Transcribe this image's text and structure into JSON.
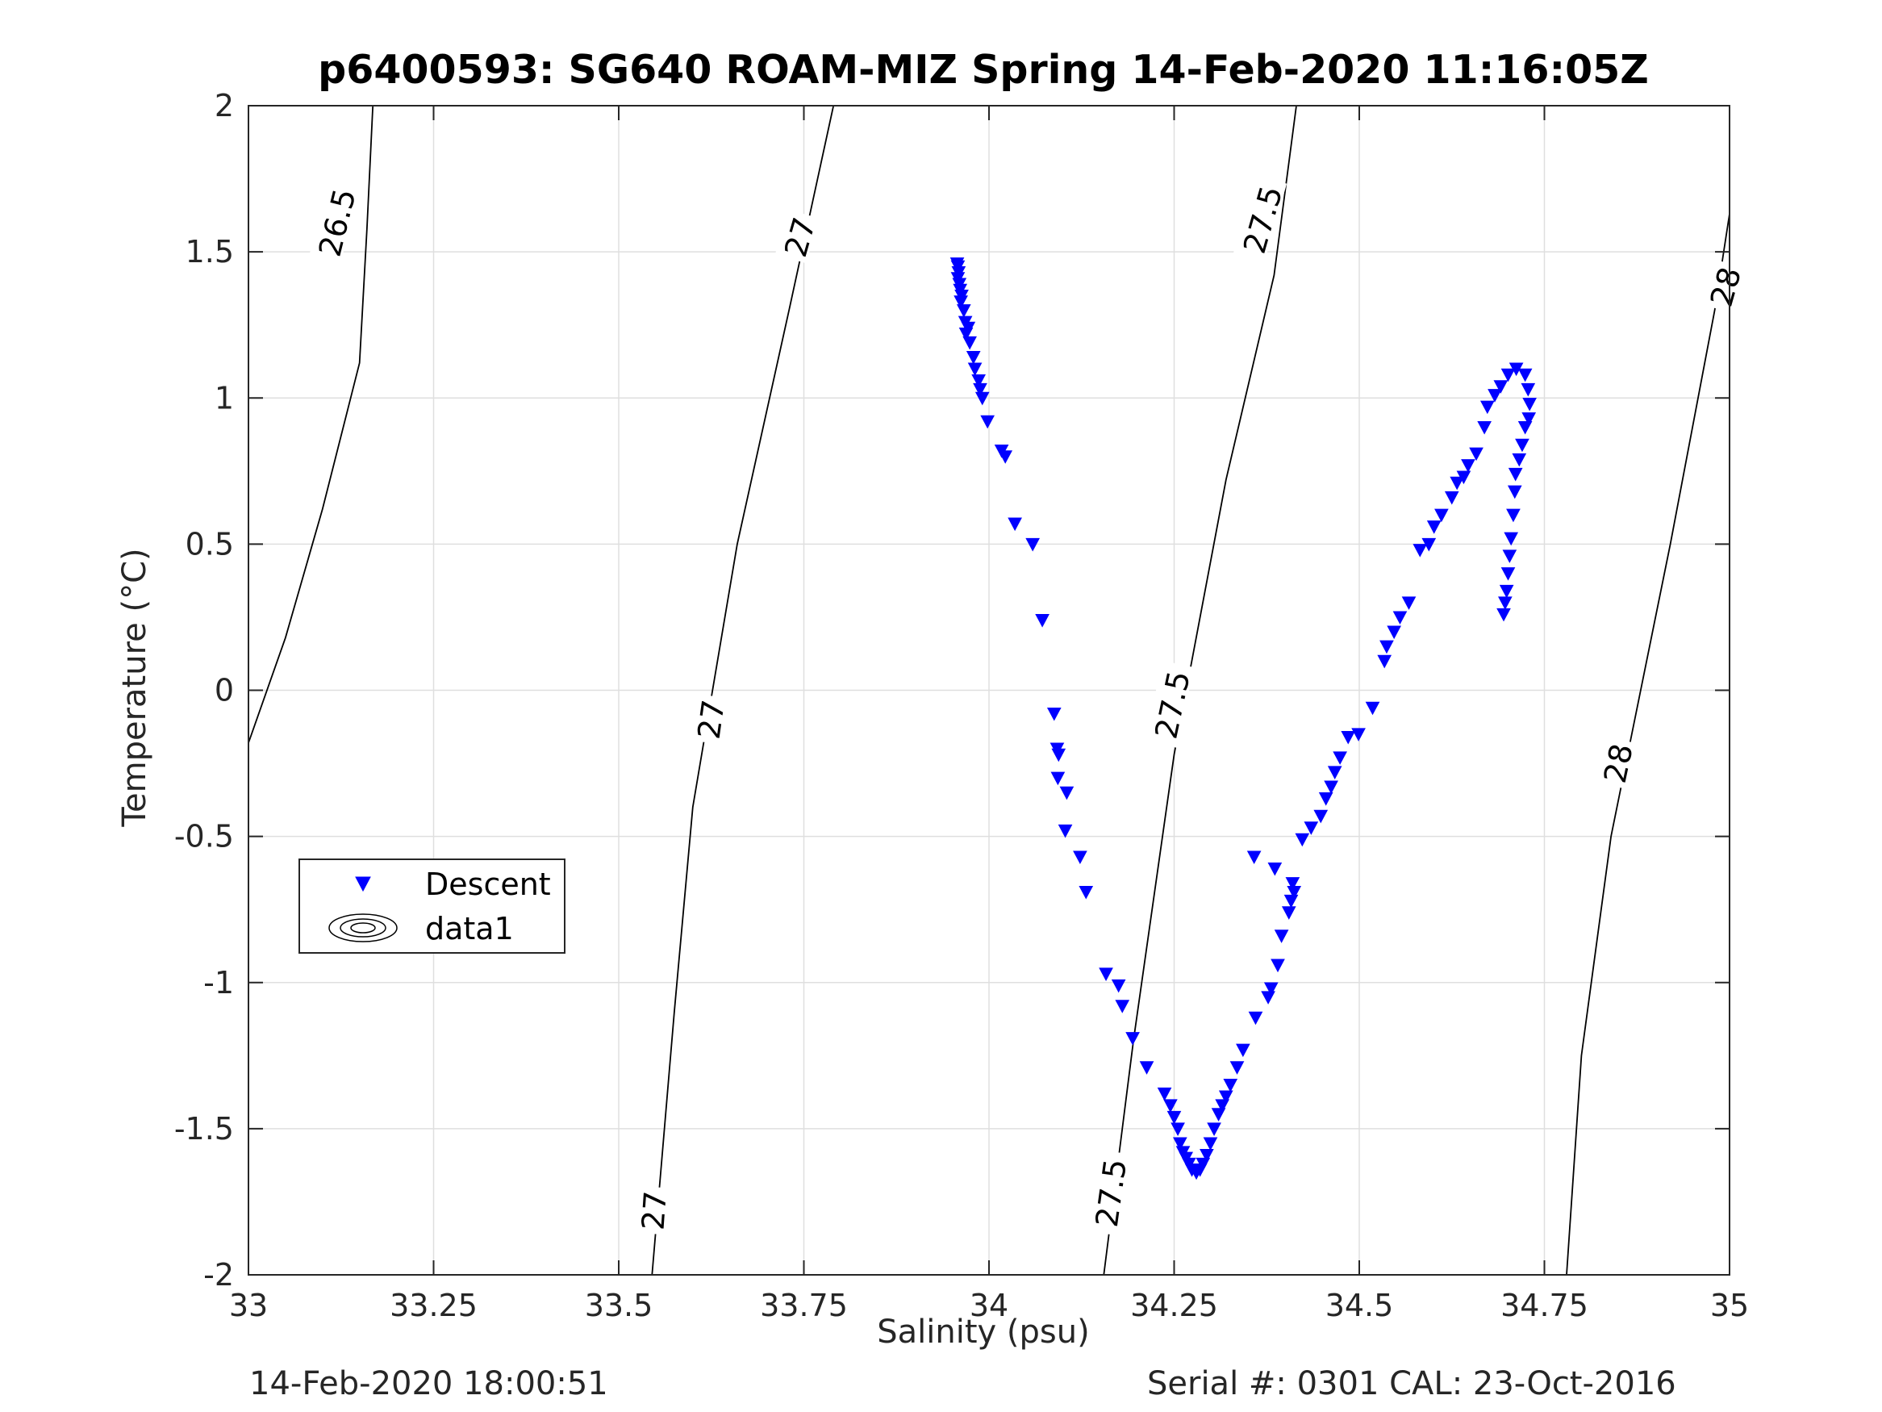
{
  "chart_data": {
    "type": "scatter",
    "title": "p6400593: SG640 ROAM-MIZ Spring 14-Feb-2020 11:16:05Z",
    "xlabel": "Salinity (psu)",
    "ylabel": "Temperature (°C)",
    "xlim": [
      33,
      35
    ],
    "ylim": [
      -2,
      2
    ],
    "x_ticks": [
      33,
      33.25,
      33.5,
      33.75,
      34,
      34.25,
      34.5,
      34.75,
      35
    ],
    "x_tick_labels": [
      "33",
      "33.25",
      "33.5",
      "33.75",
      "34",
      "34.25",
      "34.5",
      "34.75",
      "35"
    ],
    "y_ticks": [
      -2,
      -1.5,
      -1,
      -0.5,
      0,
      0.5,
      1,
      1.5,
      2
    ],
    "y_tick_labels": [
      "-2",
      "-1.5",
      "-1",
      "-0.5",
      "0",
      "0.5",
      "1",
      "1.5",
      "2"
    ],
    "grid": true,
    "legend": {
      "position": "left",
      "entries": [
        "Descent",
        "data1"
      ]
    },
    "series": [
      {
        "name": "Descent",
        "marker": "down-triangle",
        "color": "#0000ff",
        "points": [
          [
            33.957,
            1.46
          ],
          [
            33.958,
            1.45
          ],
          [
            33.959,
            1.43
          ],
          [
            33.958,
            1.41
          ],
          [
            33.96,
            1.39
          ],
          [
            33.961,
            1.37
          ],
          [
            33.963,
            1.35
          ],
          [
            33.962,
            1.33
          ],
          [
            33.966,
            1.3
          ],
          [
            33.968,
            1.26
          ],
          [
            33.972,
            1.24
          ],
          [
            33.969,
            1.22
          ],
          [
            33.974,
            1.19
          ],
          [
            33.979,
            1.14
          ],
          [
            33.981,
            1.1
          ],
          [
            33.986,
            1.06
          ],
          [
            33.988,
            1.03
          ],
          [
            33.991,
            1.0
          ],
          [
            33.998,
            0.92
          ],
          [
            34.017,
            0.82
          ],
          [
            34.022,
            0.8
          ],
          [
            34.035,
            0.57
          ],
          [
            34.059,
            0.5
          ],
          [
            34.072,
            0.24
          ],
          [
            34.088,
            -0.08
          ],
          [
            34.092,
            -0.2
          ],
          [
            34.094,
            -0.22
          ],
          [
            34.093,
            -0.3
          ],
          [
            34.105,
            -0.35
          ],
          [
            34.103,
            -0.48
          ],
          [
            34.123,
            -0.57
          ],
          [
            34.131,
            -0.69
          ],
          [
            34.158,
            -0.97
          ],
          [
            34.175,
            -1.01
          ],
          [
            34.18,
            -1.08
          ],
          [
            34.194,
            -1.19
          ],
          [
            34.213,
            -1.29
          ],
          [
            34.237,
            -1.38
          ],
          [
            34.245,
            -1.42
          ],
          [
            34.25,
            -1.46
          ],
          [
            34.255,
            -1.5
          ],
          [
            34.258,
            -1.55
          ],
          [
            34.262,
            -1.58
          ],
          [
            34.266,
            -1.6
          ],
          [
            34.27,
            -1.62
          ],
          [
            34.274,
            -1.64
          ],
          [
            34.28,
            -1.65
          ],
          [
            34.285,
            -1.64
          ],
          [
            34.289,
            -1.62
          ],
          [
            34.294,
            -1.59
          ],
          [
            34.299,
            -1.55
          ],
          [
            34.304,
            -1.5
          ],
          [
            34.31,
            -1.45
          ],
          [
            34.315,
            -1.42
          ],
          [
            34.32,
            -1.39
          ],
          [
            34.326,
            -1.35
          ],
          [
            34.335,
            -1.29
          ],
          [
            34.343,
            -1.23
          ],
          [
            34.36,
            -1.12
          ],
          [
            34.377,
            -1.05
          ],
          [
            34.381,
            -1.02
          ],
          [
            34.39,
            -0.94
          ],
          [
            34.395,
            -0.84
          ],
          [
            34.405,
            -0.76
          ],
          [
            34.408,
            -0.72
          ],
          [
            34.412,
            -0.69
          ],
          [
            34.41,
            -0.66
          ],
          [
            34.358,
            -0.57
          ],
          [
            34.386,
            -0.61
          ],
          [
            34.423,
            -0.51
          ],
          [
            34.435,
            -0.47
          ],
          [
            34.448,
            -0.43
          ],
          [
            34.455,
            -0.37
          ],
          [
            34.462,
            -0.33
          ],
          [
            34.467,
            -0.28
          ],
          [
            34.474,
            -0.23
          ],
          [
            34.485,
            -0.16
          ],
          [
            34.499,
            -0.15
          ],
          [
            34.518,
            -0.06
          ],
          [
            34.534,
            0.1
          ],
          [
            34.537,
            0.15
          ],
          [
            34.547,
            0.2
          ],
          [
            34.555,
            0.25
          ],
          [
            34.567,
            0.3
          ],
          [
            34.582,
            0.48
          ],
          [
            34.594,
            0.5
          ],
          [
            34.601,
            0.56
          ],
          [
            34.611,
            0.6
          ],
          [
            34.625,
            0.66
          ],
          [
            34.632,
            0.71
          ],
          [
            34.641,
            0.73
          ],
          [
            34.647,
            0.77
          ],
          [
            34.658,
            0.81
          ],
          [
            34.669,
            0.9
          ],
          [
            34.673,
            0.97
          ],
          [
            34.683,
            1.01
          ],
          [
            34.691,
            1.04
          ],
          [
            34.701,
            1.08
          ],
          [
            34.712,
            1.1
          ],
          [
            34.724,
            1.08
          ],
          [
            34.728,
            1.03
          ],
          [
            34.73,
            0.98
          ],
          [
            34.729,
            0.93
          ],
          [
            34.724,
            0.9
          ],
          [
            34.72,
            0.84
          ],
          [
            34.716,
            0.79
          ],
          [
            34.711,
            0.74
          ],
          [
            34.71,
            0.68
          ],
          [
            34.708,
            0.6
          ],
          [
            34.705,
            0.52
          ],
          [
            34.703,
            0.46
          ],
          [
            34.701,
            0.4
          ],
          [
            34.699,
            0.34
          ],
          [
            34.697,
            0.3
          ],
          [
            34.695,
            0.26
          ]
        ]
      }
    ],
    "isopycnals": [
      {
        "label": "26.5",
        "points": [
          [
            33.0,
            -0.18
          ],
          [
            33.05,
            0.18
          ],
          [
            33.1,
            0.62
          ],
          [
            33.15,
            1.12
          ],
          [
            33.16,
            1.58
          ],
          [
            33.168,
            2.0
          ]
        ]
      },
      {
        "label": "27",
        "points": [
          [
            33.545,
            -2.0
          ],
          [
            33.575,
            -1.1
          ],
          [
            33.6,
            -0.4
          ],
          [
            33.66,
            0.5
          ],
          [
            33.73,
            1.3
          ],
          [
            33.79,
            2.0
          ]
        ]
      },
      {
        "label": "27.5",
        "points": [
          [
            34.155,
            -2.0
          ],
          [
            34.195,
            -1.2
          ],
          [
            34.25,
            -0.22
          ],
          [
            34.32,
            0.72
          ],
          [
            34.385,
            1.42
          ],
          [
            34.415,
            2.0
          ]
        ]
      },
      {
        "label": "28",
        "points": [
          [
            34.78,
            -2.0
          ],
          [
            34.8,
            -1.25
          ],
          [
            34.84,
            -0.5
          ],
          [
            34.92,
            0.5
          ],
          [
            34.98,
            1.3
          ],
          [
            35.0,
            1.63
          ]
        ]
      }
    ],
    "contour_labels": [
      {
        "text": "26.5",
        "x": 33.12,
        "y": 1.6,
        "angle": -76
      },
      {
        "text": "27",
        "x": 33.745,
        "y": 1.55,
        "angle": -74
      },
      {
        "text": "27.5",
        "x": 34.37,
        "y": 1.61,
        "angle": -74
      },
      {
        "text": "28",
        "x": 34.995,
        "y": 1.38,
        "angle": -74
      },
      {
        "text": "27",
        "x": 33.625,
        "y": -0.1,
        "angle": -82
      },
      {
        "text": "27.5",
        "x": 34.248,
        "y": -0.05,
        "angle": -78
      },
      {
        "text": "28",
        "x": 34.85,
        "y": -0.25,
        "angle": -78
      },
      {
        "text": "27",
        "x": 33.548,
        "y": -1.78,
        "angle": -86
      },
      {
        "text": "27.5",
        "x": 34.165,
        "y": -1.72,
        "angle": -82
      }
    ]
  },
  "footer": {
    "timestamp": "14-Feb-2020 18:00:51",
    "serial": "Serial #: 0301  CAL: 23-Oct-2016"
  },
  "colors": {
    "marker": "#0000ff",
    "axis": "#262626",
    "grid": "#dfdfdf",
    "isopycnal": "#000000"
  }
}
